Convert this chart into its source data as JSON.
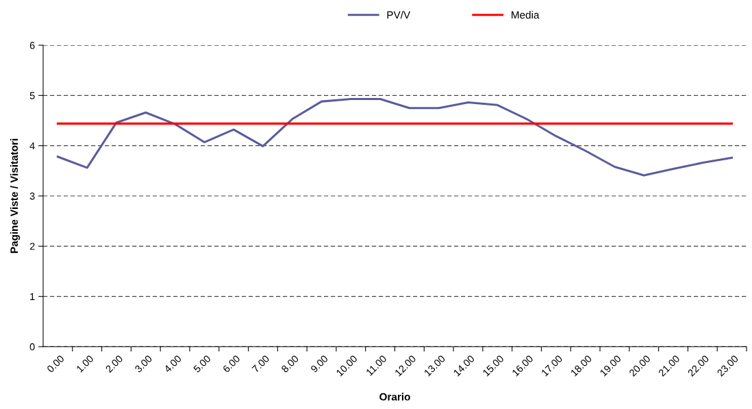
{
  "chart_data": {
    "type": "line",
    "xlabel": "Orario",
    "ylabel": "Pagine Viste / Visitatori",
    "categories": [
      "0.00",
      "1.00",
      "2.00",
      "3.00",
      "4.00",
      "5.00",
      "6.00",
      "7.00",
      "8.00",
      "9.00",
      "10.00",
      "11.00",
      "12.00",
      "13.00",
      "14.00",
      "15.00",
      "16.00",
      "17.00",
      "18.00",
      "19.00",
      "20.00",
      "21.00",
      "22.00",
      "23.00"
    ],
    "series": [
      {
        "name": "PV/V",
        "color": "#5b5b9b",
        "values": [
          3.78,
          3.56,
          4.46,
          4.66,
          4.43,
          4.07,
          4.32,
          3.99,
          4.53,
          4.88,
          4.93,
          4.93,
          4.75,
          4.75,
          4.86,
          4.81,
          4.53,
          4.19,
          3.9,
          3.58,
          3.41,
          3.54,
          3.66,
          3.76
        ]
      },
      {
        "name": "Media",
        "color": "#ff0000",
        "values": [
          4.44,
          4.44,
          4.44,
          4.44,
          4.44,
          4.44,
          4.44,
          4.44,
          4.44,
          4.44,
          4.44,
          4.44,
          4.44,
          4.44,
          4.44,
          4.44,
          4.44,
          4.44,
          4.44,
          4.44,
          4.44,
          4.44,
          4.44,
          4.44
        ]
      }
    ],
    "ylim": [
      0,
      6
    ],
    "yticks": [
      0,
      1,
      2,
      3,
      4,
      5,
      6
    ],
    "grid": "y",
    "legend": "top",
    "marker": "none",
    "line_style": "solid"
  }
}
